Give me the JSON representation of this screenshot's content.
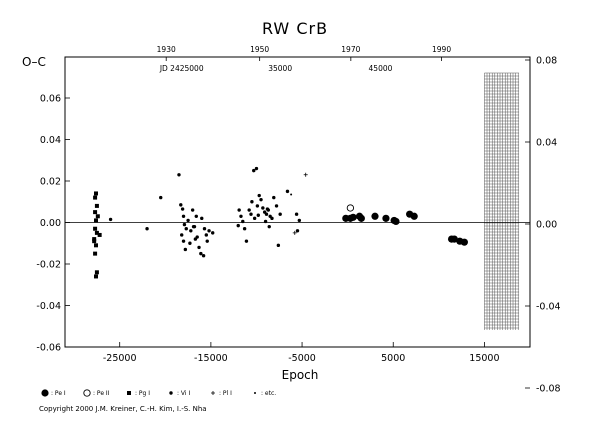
{
  "chart_data": {
    "type": "scatter",
    "title": "RW  CrB",
    "ylabel": "O–C",
    "xlabel": "Epoch",
    "xlim": [
      -31000,
      20000
    ],
    "ylim": [
      -0.06,
      0.08
    ],
    "x_ticks": [
      {
        "value": -25000,
        "label": "-25000"
      },
      {
        "value": -15000,
        "label": "-15000"
      },
      {
        "value": -5000,
        "label": "-5000"
      },
      {
        "value": 5000,
        "label": "5000"
      },
      {
        "value": 15000,
        "label": "15000"
      }
    ],
    "y_ticks_left": [
      {
        "value": -0.06,
        "label": "-0.06"
      },
      {
        "value": -0.04,
        "label": "-0.04"
      },
      {
        "value": -0.02,
        "label": "-0.02"
      },
      {
        "value": 0.0,
        "label": "0.00"
      },
      {
        "value": 0.02,
        "label": "0.02"
      },
      {
        "value": 0.04,
        "label": "0.04"
      },
      {
        "value": 0.06,
        "label": "0.06"
      }
    ],
    "y_ticks_right": [
      {
        "value": -0.08,
        "label": "-0.08"
      },
      {
        "value": -0.04,
        "label": "-0.04"
      },
      {
        "value": 0.0,
        "label": "0.00"
      },
      {
        "value": 0.04,
        "label": "0.04"
      },
      {
        "value": 0.08,
        "label": "0.08"
      }
    ],
    "top_year_ticks": [
      {
        "value": -19900,
        "label": "1930"
      },
      {
        "value": -9650,
        "label": "1950"
      },
      {
        "value": 350,
        "label": "1970"
      },
      {
        "value": 10300,
        "label": "1990"
      }
    ],
    "top_jd_ticks": [
      {
        "value": -18200,
        "label": "JD 2425000"
      },
      {
        "value": -7400,
        "label": "35000"
      },
      {
        "value": 3600,
        "label": "45000"
      }
    ],
    "zero_line": 0.0,
    "hatched_region": [
      15000,
      18800
    ],
    "series": [
      {
        "name": ": Pe I",
        "marker": "filled-circle",
        "points": [
          [
            -200,
            0.002
          ],
          [
            300,
            0.002
          ],
          [
            600,
            0.0025
          ],
          [
            1300,
            0.003
          ],
          [
            1500,
            0.002
          ],
          [
            3000,
            0.003
          ],
          [
            4200,
            0.002
          ],
          [
            5100,
            0.001
          ],
          [
            5300,
            0.0005
          ],
          [
            6800,
            0.004
          ],
          [
            7300,
            0.003
          ],
          [
            11400,
            -0.008
          ],
          [
            11700,
            -0.008
          ],
          [
            12300,
            -0.009
          ],
          [
            12800,
            -0.0095
          ]
        ]
      },
      {
        "name": ": Pe II",
        "marker": "open-circle",
        "points": [
          [
            300,
            0.007
          ]
        ]
      },
      {
        "name": ": Pg I",
        "marker": "filled-square",
        "points": [
          [
            -27600,
            0.014
          ],
          [
            -27700,
            0.012
          ],
          [
            -27500,
            0.008
          ],
          [
            -27700,
            0.005
          ],
          [
            -27400,
            0.003
          ],
          [
            -27600,
            0.001
          ],
          [
            -27700,
            -0.003
          ],
          [
            -27500,
            -0.005
          ],
          [
            -27800,
            -0.008
          ],
          [
            -27600,
            -0.011
          ],
          [
            -27700,
            -0.015
          ],
          [
            -27500,
            -0.024
          ],
          [
            -27600,
            -0.026
          ],
          [
            -27200,
            -0.006
          ],
          [
            -27800,
            -0.009
          ]
        ]
      },
      {
        "name": ": Vi I",
        "marker": "filled-dot",
        "points": [
          [
            -26000,
            0.0015
          ],
          [
            -22000,
            -0.003
          ],
          [
            -20500,
            0.012
          ],
          [
            -18500,
            0.023
          ],
          [
            -18300,
            0.0085
          ],
          [
            -18100,
            0.0065
          ],
          [
            -18000,
            0.003
          ],
          [
            -17900,
            -0.001
          ],
          [
            -17700,
            -0.003
          ],
          [
            -18200,
            -0.006
          ],
          [
            -18000,
            -0.009
          ],
          [
            -17800,
            -0.013
          ],
          [
            -17500,
            0.001
          ],
          [
            -17200,
            -0.004
          ],
          [
            -17000,
            0.006
          ],
          [
            -16800,
            -0.002
          ],
          [
            -16600,
            0.003
          ],
          [
            -16500,
            -0.007
          ],
          [
            -16300,
            -0.012
          ],
          [
            -16100,
            -0.015
          ],
          [
            -15800,
            -0.016
          ],
          [
            -16000,
            0.002
          ],
          [
            -15700,
            -0.003
          ],
          [
            -15500,
            -0.006
          ],
          [
            -15400,
            -0.009
          ],
          [
            -16900,
            -0.002
          ],
          [
            -17300,
            -0.01
          ],
          [
            -15200,
            -0.004
          ],
          [
            -14800,
            -0.005
          ],
          [
            -16700,
            -0.008
          ],
          [
            -11900,
            0.006
          ],
          [
            -11700,
            0.003
          ],
          [
            -11500,
            0.0005
          ],
          [
            -11300,
            -0.003
          ],
          [
            -11100,
            -0.009
          ],
          [
            -10800,
            0.006
          ],
          [
            -10500,
            0.01
          ],
          [
            -10300,
            0.025
          ],
          [
            -10000,
            0.026
          ],
          [
            -10200,
            0.002
          ],
          [
            -9900,
            0.008
          ],
          [
            -9700,
            0.013
          ],
          [
            -9500,
            0.011
          ],
          [
            -9300,
            0.007
          ],
          [
            -9100,
            0.005
          ],
          [
            -8900,
            0.004
          ],
          [
            -8700,
            0.006
          ],
          [
            -8500,
            0.003
          ],
          [
            -8300,
            0.002
          ],
          [
            -8600,
            -0.002
          ],
          [
            -8100,
            0.012
          ],
          [
            -7800,
            0.008
          ],
          [
            -7600,
            -0.011
          ],
          [
            -7400,
            0.004
          ],
          [
            -9800,
            0.0035
          ],
          [
            -8800,
            0.0065
          ],
          [
            -9000,
            0.0005
          ],
          [
            -6600,
            0.015
          ],
          [
            -5600,
            0.004
          ],
          [
            -5300,
            0.001
          ],
          [
            -5500,
            -0.004
          ],
          [
            -10600,
            0.004
          ],
          [
            -12000,
            -0.0015
          ]
        ]
      },
      {
        "name": ": Pl I",
        "marker": "plus",
        "points": [
          [
            -4600,
            0.023
          ],
          [
            -5800,
            -0.005
          ]
        ]
      },
      {
        "name": ": etc.",
        "marker": "dot-small",
        "points": [
          [
            -6200,
            0.0135
          ]
        ]
      }
    ]
  },
  "legend_items": [
    {
      "symbol": "filled-circle",
      "label": ": Pe I"
    },
    {
      "symbol": "open-circle",
      "label": ": Pe II"
    },
    {
      "symbol": "filled-square",
      "label": ": Pg I"
    },
    {
      "symbol": "filled-dot",
      "label": ": Vi I"
    },
    {
      "symbol": "plus",
      "label": ": Pl I"
    },
    {
      "symbol": "dot-small",
      "label": ": etc."
    }
  ],
  "copyright": "Copyright 2000 J.M. Kreiner, C.-H. Kim, I.-S. Nha"
}
